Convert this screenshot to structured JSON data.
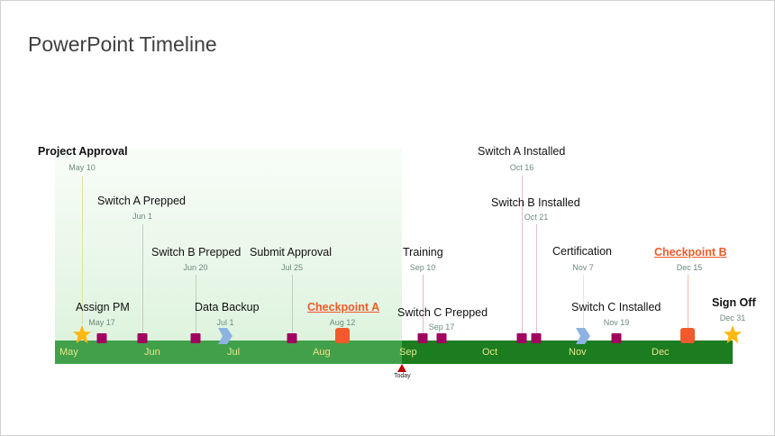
{
  "slide": {
    "title": "PowerPoint Timeline"
  },
  "colors": {
    "past_bar": "#43a04a",
    "future_bar": "#1b7d1f",
    "task_marker": "#a0005f",
    "checkpoint": "#f15a2c",
    "milestone_star": "#fdb813",
    "chevron": "#8db3e2",
    "today_marker": "#c00000"
  },
  "months": [
    "May",
    "Jun",
    "Jul",
    "Aug",
    "Sep",
    "Oct",
    "Nov",
    "Dec"
  ],
  "today_label": "Today",
  "events": [
    {
      "label": "Project Approval",
      "date": "May 10",
      "marker": "star-icon"
    },
    {
      "label": "Assign PM",
      "date": "May 17",
      "marker": "square"
    },
    {
      "label": "Switch A Prepped",
      "date": "Jun 1",
      "marker": "square"
    },
    {
      "label": "Switch B Prepped",
      "date": "Jun 20",
      "marker": "square"
    },
    {
      "label": "Data Backup",
      "date": "Jul 1",
      "marker": "chevron-icon"
    },
    {
      "label": "Submit Approval",
      "date": "Jul 25",
      "marker": "square"
    },
    {
      "label": "Checkpoint A",
      "date": "Aug 12",
      "marker": "checkpoint"
    },
    {
      "label": "Training",
      "date": "Sep 10",
      "marker": "square"
    },
    {
      "label": "Switch C Prepped",
      "date": "Sep 17",
      "marker": "square"
    },
    {
      "label": "Switch A Installed",
      "date": "Oct 16",
      "marker": "square"
    },
    {
      "label": "Switch B Installed",
      "date": "Oct 21",
      "marker": "square"
    },
    {
      "label": "Certification",
      "date": "Nov 7",
      "marker": "chevron-icon"
    },
    {
      "label": "Switch C Installed",
      "date": "Nov 19",
      "marker": "square"
    },
    {
      "label": "Checkpoint B",
      "date": "Dec 15",
      "marker": "checkpoint"
    },
    {
      "label": "Sign Off",
      "date": "Dec 31",
      "marker": "star-icon"
    }
  ]
}
